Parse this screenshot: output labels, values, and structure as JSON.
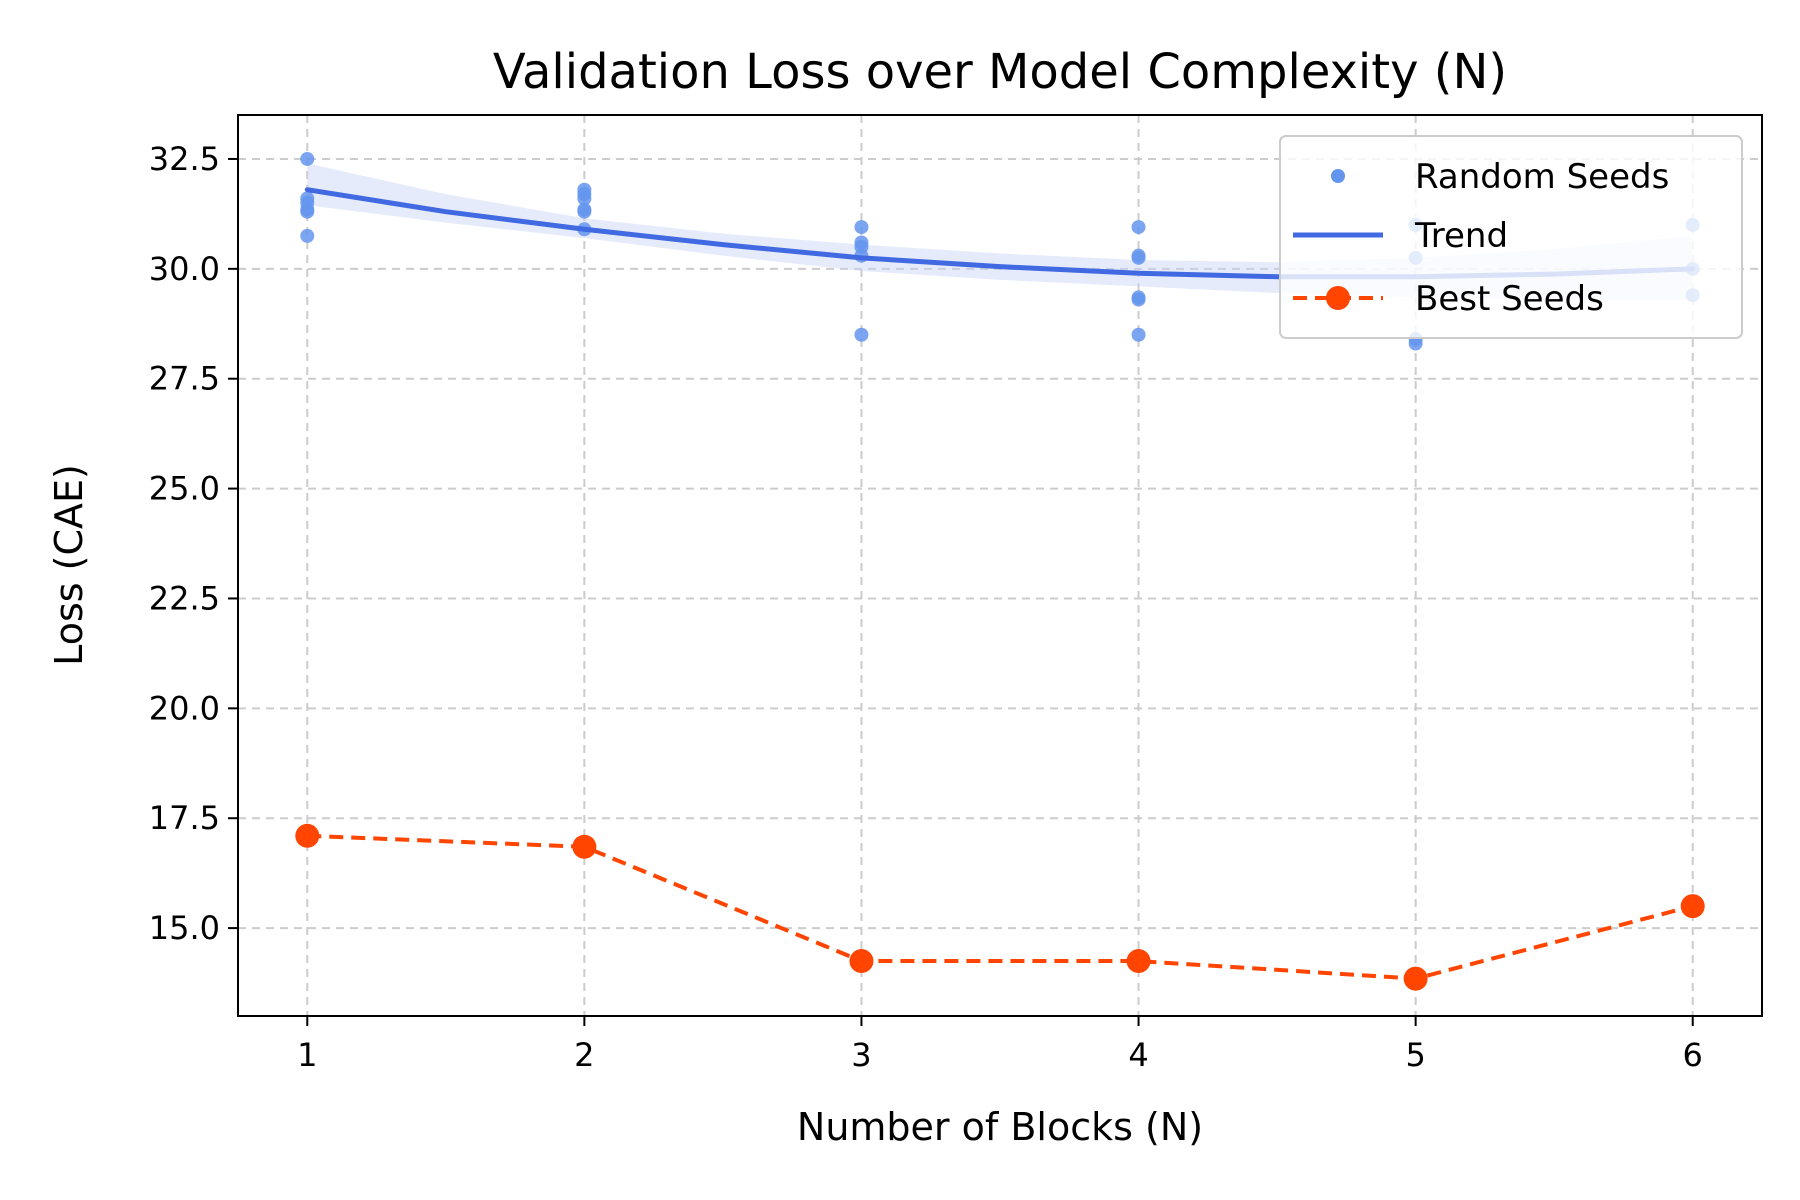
{
  "chart_data": {
    "type": "line",
    "title": "Validation Loss over Model Complexity (N)",
    "xlabel": "Number of Blocks (N)",
    "ylabel": "Loss (CAE)",
    "xlim": [
      0.75,
      6.25
    ],
    "ylim": [
      13.0,
      33.5
    ],
    "x_ticks": [
      1,
      2,
      3,
      4,
      5,
      6
    ],
    "y_ticks": [
      15.0,
      17.5,
      20.0,
      22.5,
      25.0,
      27.5,
      30.0,
      32.5
    ],
    "x_tick_labels": [
      "1",
      "2",
      "3",
      "4",
      "5",
      "6"
    ],
    "y_tick_labels": [
      "15.0",
      "17.5",
      "20.0",
      "22.5",
      "25.0",
      "27.5",
      "30.0",
      "32.5"
    ],
    "grid": true,
    "legend_position": "top-right",
    "colors": {
      "random_seeds": "#6495ed",
      "trend": "#4169e1",
      "band": "#c6d3f6",
      "best_seeds": "#ff4500",
      "grid": "#cccccc"
    },
    "series": [
      {
        "name": "Random Seeds",
        "kind": "scatter",
        "points": [
          [
            1,
            32.5
          ],
          [
            1,
            31.6
          ],
          [
            1,
            31.5
          ],
          [
            1,
            31.35
          ],
          [
            1,
            31.3
          ],
          [
            1,
            30.75
          ],
          [
            2,
            31.8
          ],
          [
            2,
            31.7
          ],
          [
            2,
            31.6
          ],
          [
            2,
            31.35
          ],
          [
            2,
            31.3
          ],
          [
            2,
            30.9
          ],
          [
            3,
            30.95
          ],
          [
            3,
            30.6
          ],
          [
            3,
            30.5
          ],
          [
            3,
            30.3
          ],
          [
            3,
            28.5
          ],
          [
            4,
            30.95
          ],
          [
            4,
            30.3
          ],
          [
            4,
            30.25
          ],
          [
            4,
            29.35
          ],
          [
            4,
            29.3
          ],
          [
            4,
            28.5
          ],
          [
            5,
            31.0
          ],
          [
            5,
            30.25
          ],
          [
            5,
            28.4
          ],
          [
            5,
            28.3
          ],
          [
            6,
            31.0
          ],
          [
            6,
            30.0
          ],
          [
            6,
            29.4
          ]
        ]
      },
      {
        "name": "Trend",
        "kind": "line",
        "x": [
          1,
          1.5,
          2,
          2.5,
          3,
          3.5,
          4,
          4.5,
          5,
          5.5,
          6
        ],
        "y": [
          31.8,
          31.3,
          30.9,
          30.55,
          30.25,
          30.05,
          29.9,
          29.82,
          29.82,
          29.88,
          30.0
        ],
        "band_lower": [
          31.45,
          31.05,
          30.7,
          30.3,
          29.95,
          29.75,
          29.6,
          29.45,
          29.35,
          29.3,
          29.3
        ],
        "band_upper": [
          32.4,
          31.7,
          31.15,
          30.8,
          30.55,
          30.35,
          30.2,
          30.15,
          30.25,
          30.45,
          30.75
        ]
      },
      {
        "name": "Best Seeds",
        "kind": "line-markers",
        "x": [
          1,
          2,
          3,
          4,
          5,
          6
        ],
        "y": [
          17.1,
          16.85,
          14.25,
          14.25,
          13.85,
          15.5
        ]
      }
    ]
  }
}
